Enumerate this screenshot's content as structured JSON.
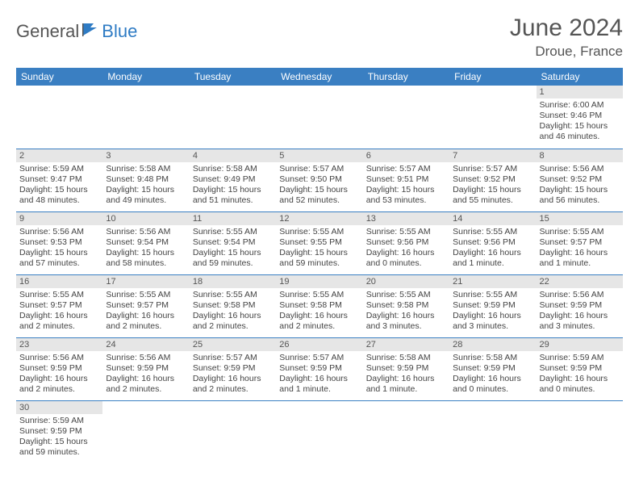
{
  "brand": {
    "general": "General",
    "blue": "Blue"
  },
  "title": "June 2024",
  "location": "Droue, France",
  "colors": {
    "header_bg": "#3a7fc2",
    "header_text": "#ffffff",
    "daynum_bg": "#e6e6e6",
    "cell_border": "#3a7fc2",
    "body_text": "#444444",
    "title_text": "#555555",
    "brand_blue": "#2e7bc4"
  },
  "weekdays": [
    "Sunday",
    "Monday",
    "Tuesday",
    "Wednesday",
    "Thursday",
    "Friday",
    "Saturday"
  ],
  "days": {
    "1": {
      "sunrise": "6:00 AM",
      "sunset": "9:46 PM",
      "daylight": "15 hours and 46 minutes."
    },
    "2": {
      "sunrise": "5:59 AM",
      "sunset": "9:47 PM",
      "daylight": "15 hours and 48 minutes."
    },
    "3": {
      "sunrise": "5:58 AM",
      "sunset": "9:48 PM",
      "daylight": "15 hours and 49 minutes."
    },
    "4": {
      "sunrise": "5:58 AM",
      "sunset": "9:49 PM",
      "daylight": "15 hours and 51 minutes."
    },
    "5": {
      "sunrise": "5:57 AM",
      "sunset": "9:50 PM",
      "daylight": "15 hours and 52 minutes."
    },
    "6": {
      "sunrise": "5:57 AM",
      "sunset": "9:51 PM",
      "daylight": "15 hours and 53 minutes."
    },
    "7": {
      "sunrise": "5:57 AM",
      "sunset": "9:52 PM",
      "daylight": "15 hours and 55 minutes."
    },
    "8": {
      "sunrise": "5:56 AM",
      "sunset": "9:52 PM",
      "daylight": "15 hours and 56 minutes."
    },
    "9": {
      "sunrise": "5:56 AM",
      "sunset": "9:53 PM",
      "daylight": "15 hours and 57 minutes."
    },
    "10": {
      "sunrise": "5:56 AM",
      "sunset": "9:54 PM",
      "daylight": "15 hours and 58 minutes."
    },
    "11": {
      "sunrise": "5:55 AM",
      "sunset": "9:54 PM",
      "daylight": "15 hours and 59 minutes."
    },
    "12": {
      "sunrise": "5:55 AM",
      "sunset": "9:55 PM",
      "daylight": "15 hours and 59 minutes."
    },
    "13": {
      "sunrise": "5:55 AM",
      "sunset": "9:56 PM",
      "daylight": "16 hours and 0 minutes."
    },
    "14": {
      "sunrise": "5:55 AM",
      "sunset": "9:56 PM",
      "daylight": "16 hours and 1 minute."
    },
    "15": {
      "sunrise": "5:55 AM",
      "sunset": "9:57 PM",
      "daylight": "16 hours and 1 minute."
    },
    "16": {
      "sunrise": "5:55 AM",
      "sunset": "9:57 PM",
      "daylight": "16 hours and 2 minutes."
    },
    "17": {
      "sunrise": "5:55 AM",
      "sunset": "9:57 PM",
      "daylight": "16 hours and 2 minutes."
    },
    "18": {
      "sunrise": "5:55 AM",
      "sunset": "9:58 PM",
      "daylight": "16 hours and 2 minutes."
    },
    "19": {
      "sunrise": "5:55 AM",
      "sunset": "9:58 PM",
      "daylight": "16 hours and 2 minutes."
    },
    "20": {
      "sunrise": "5:55 AM",
      "sunset": "9:58 PM",
      "daylight": "16 hours and 3 minutes."
    },
    "21": {
      "sunrise": "5:55 AM",
      "sunset": "9:59 PM",
      "daylight": "16 hours and 3 minutes."
    },
    "22": {
      "sunrise": "5:56 AM",
      "sunset": "9:59 PM",
      "daylight": "16 hours and 3 minutes."
    },
    "23": {
      "sunrise": "5:56 AM",
      "sunset": "9:59 PM",
      "daylight": "16 hours and 2 minutes."
    },
    "24": {
      "sunrise": "5:56 AM",
      "sunset": "9:59 PM",
      "daylight": "16 hours and 2 minutes."
    },
    "25": {
      "sunrise": "5:57 AM",
      "sunset": "9:59 PM",
      "daylight": "16 hours and 2 minutes."
    },
    "26": {
      "sunrise": "5:57 AM",
      "sunset": "9:59 PM",
      "daylight": "16 hours and 1 minute."
    },
    "27": {
      "sunrise": "5:58 AM",
      "sunset": "9:59 PM",
      "daylight": "16 hours and 1 minute."
    },
    "28": {
      "sunrise": "5:58 AM",
      "sunset": "9:59 PM",
      "daylight": "16 hours and 0 minutes."
    },
    "29": {
      "sunrise": "5:59 AM",
      "sunset": "9:59 PM",
      "daylight": "16 hours and 0 minutes."
    },
    "30": {
      "sunrise": "5:59 AM",
      "sunset": "9:59 PM",
      "daylight": "15 hours and 59 minutes."
    }
  },
  "labels": {
    "sunrise": "Sunrise:",
    "sunset": "Sunset:",
    "daylight": "Daylight:"
  },
  "grid": [
    [
      null,
      null,
      null,
      null,
      null,
      null,
      "1"
    ],
    [
      "2",
      "3",
      "4",
      "5",
      "6",
      "7",
      "8"
    ],
    [
      "9",
      "10",
      "11",
      "12",
      "13",
      "14",
      "15"
    ],
    [
      "16",
      "17",
      "18",
      "19",
      "20",
      "21",
      "22"
    ],
    [
      "23",
      "24",
      "25",
      "26",
      "27",
      "28",
      "29"
    ],
    [
      "30",
      null,
      null,
      null,
      null,
      null,
      null
    ]
  ]
}
